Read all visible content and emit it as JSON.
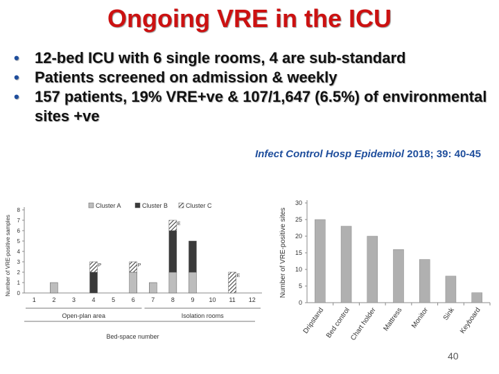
{
  "slide": {
    "title": "Ongoing VRE in the ICU",
    "bullets": [
      "12-bed ICU with 6 single rooms, 4 are sub-standard",
      "Patients screened on admission & weekly",
      "157 patients, 19% VRE+ve & 107/1,647 (6.5%) of environmental sites +ve"
    ],
    "citation": {
      "journal": "Infect Control Hosp Epidemiol",
      "details": " 2018; 39: 40-45"
    },
    "page_number": "40"
  },
  "colors": {
    "title": "#cc1111",
    "bullet_marker": "#1f4e9c",
    "citation": "#1f4e9c",
    "cluster_a": "#bdbdbd",
    "cluster_b": "#3a3a3a",
    "right_bars": "#b0b0b0"
  },
  "chart_data": [
    {
      "type": "bar",
      "stacked": true,
      "categories": [
        "1",
        "2",
        "3",
        "4",
        "5",
        "6",
        "7",
        "8",
        "9",
        "10",
        "11",
        "12"
      ],
      "series": [
        {
          "name": "Cluster A",
          "values": [
            0,
            1,
            0,
            0,
            0,
            2,
            1,
            2,
            2,
            0,
            0,
            0
          ]
        },
        {
          "name": "Cluster B",
          "values": [
            0,
            0,
            0,
            2,
            0,
            0,
            0,
            4,
            3,
            0,
            0,
            0
          ]
        },
        {
          "name": "Cluster C",
          "values": [
            0,
            0,
            0,
            1,
            0,
            1,
            0,
            1,
            0,
            0,
            2,
            0
          ]
        }
      ],
      "bar_labels": [
        {
          "category": "4",
          "text": "P"
        },
        {
          "category": "6",
          "text": "P"
        },
        {
          "category": "8",
          "text": "E"
        },
        {
          "category": "11",
          "text": "E"
        }
      ],
      "ylabel": "Number of VRE-positive samples",
      "xlabel": "Bed-space number",
      "yticks": [
        "0",
        "1",
        "2",
        "3",
        "4",
        "5",
        "6",
        "7",
        "8"
      ],
      "ylim": [
        0,
        8
      ],
      "groups": [
        {
          "label": "Open-plan area",
          "from": "1",
          "to": "6"
        },
        {
          "label": "Isolation rooms",
          "from": "7",
          "to": "12"
        }
      ],
      "legend": "top"
    },
    {
      "type": "bar",
      "categories": [
        "Dripstand",
        "Bed control",
        "Chart holder",
        "Mattress",
        "Monitor",
        "Sink",
        "Keyboard"
      ],
      "values": [
        25,
        23,
        20,
        16,
        13,
        8,
        3
      ],
      "ylabel": "Number of VRE-positive sites",
      "yticks": [
        "0",
        "5",
        "10",
        "15",
        "20",
        "25",
        "30"
      ],
      "ylim": [
        0,
        30
      ]
    }
  ]
}
